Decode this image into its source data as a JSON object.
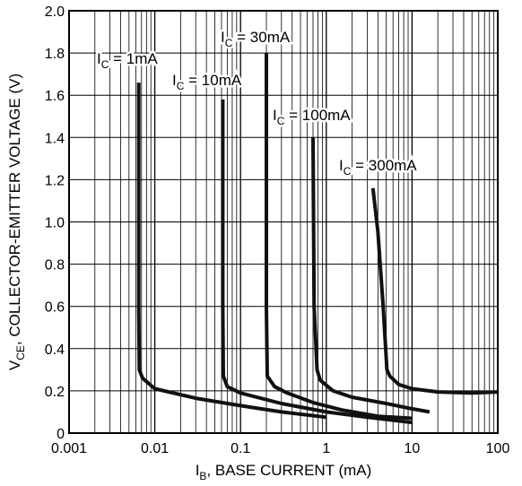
{
  "chart_data": {
    "type": "line",
    "title": "",
    "xscale": "log",
    "xlim": [
      0.001,
      100
    ],
    "ylim": [
      0,
      2.0
    ],
    "grid": true,
    "xlabel": {
      "main": "I",
      "sub": "B",
      "rest": ", BASE CURRENT (mA)"
    },
    "ylabel": {
      "main": "V",
      "sub": "CE",
      "rest": ", COLLECTOR-EMITTER VOLTAGE (V)"
    },
    "x_tick_labels": [
      "0.001",
      "0.01",
      "0.1",
      "1",
      "10",
      "100"
    ],
    "x_ticks": [
      0.001,
      0.01,
      0.1,
      1,
      10,
      100
    ],
    "y_tick_labels": [
      "0",
      "0.2",
      "0.4",
      "0.6",
      "0.8",
      "1.0",
      "1.2",
      "1.4",
      "1.6",
      "1.8",
      "2.0"
    ],
    "y_ticks": [
      0,
      0.2,
      0.4,
      0.6,
      0.8,
      1.0,
      1.2,
      1.4,
      1.6,
      1.8,
      2.0
    ],
    "series": [
      {
        "name": "I_C = 1mA",
        "label": {
          "main": "I",
          "sub": "C",
          "rest": " = 1mA"
        },
        "points": [
          [
            0.0065,
            1.66
          ],
          [
            0.0065,
            0.6
          ],
          [
            0.0066,
            0.3
          ],
          [
            0.0072,
            0.26
          ],
          [
            0.01,
            0.21
          ],
          [
            0.03,
            0.165
          ],
          [
            0.1,
            0.13
          ],
          [
            0.3,
            0.1
          ],
          [
            1.0,
            0.075
          ]
        ]
      },
      {
        "name": "I_C = 10mA",
        "label": {
          "main": "I",
          "sub": "C",
          "rest": " = 10mA"
        },
        "points": [
          [
            0.062,
            1.58
          ],
          [
            0.062,
            0.6
          ],
          [
            0.063,
            0.27
          ],
          [
            0.07,
            0.22
          ],
          [
            0.1,
            0.19
          ],
          [
            0.3,
            0.14
          ],
          [
            1.0,
            0.1
          ],
          [
            3.0,
            0.075
          ],
          [
            10,
            0.05
          ]
        ]
      },
      {
        "name": "I_C = 30mA",
        "label": {
          "main": "I",
          "sub": "C",
          "rest": " = 30mA"
        },
        "points": [
          [
            0.2,
            1.8
          ],
          [
            0.2,
            0.6
          ],
          [
            0.205,
            0.27
          ],
          [
            0.25,
            0.22
          ],
          [
            0.35,
            0.19
          ],
          [
            0.7,
            0.145
          ],
          [
            1.5,
            0.11
          ],
          [
            4.0,
            0.08
          ],
          [
            10,
            0.07
          ]
        ]
      },
      {
        "name": "I_C = 100mA",
        "label": {
          "main": "I",
          "sub": "C",
          "rest": " = 100mA"
        },
        "points": [
          [
            0.7,
            1.4
          ],
          [
            0.72,
            0.6
          ],
          [
            0.78,
            0.3
          ],
          [
            0.85,
            0.25
          ],
          [
            1.2,
            0.2
          ],
          [
            2.0,
            0.17
          ],
          [
            5.0,
            0.14
          ],
          [
            10,
            0.115
          ],
          [
            16,
            0.1
          ]
        ]
      },
      {
        "name": "I_C = 300mA",
        "label": {
          "main": "I",
          "sub": "C",
          "rest": " = 300mA"
        },
        "points": [
          [
            3.5,
            1.16
          ],
          [
            4.0,
            0.95
          ],
          [
            4.6,
            0.6
          ],
          [
            5.1,
            0.3
          ],
          [
            5.5,
            0.27
          ],
          [
            7.0,
            0.23
          ],
          [
            10,
            0.21
          ],
          [
            20,
            0.195
          ],
          [
            50,
            0.19
          ],
          [
            100,
            0.195
          ]
        ]
      }
    ]
  }
}
